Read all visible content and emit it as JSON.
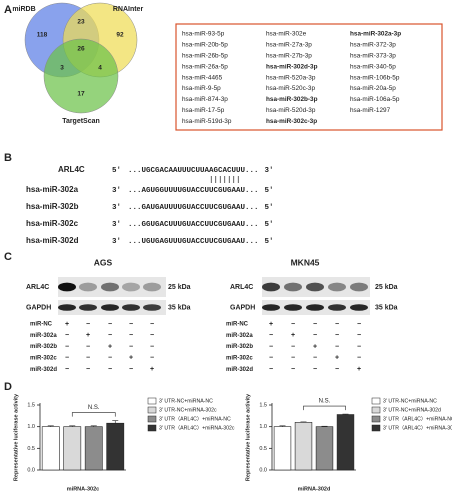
{
  "panel_labels": [
    "A",
    "B",
    "C",
    "D"
  ],
  "venn": {
    "sets": [
      {
        "name": "miRDB",
        "color": "#5b7ee6"
      },
      {
        "name": "RNAInter",
        "color": "#efdc55"
      },
      {
        "name": "TargetScan",
        "color": "#6cc24a"
      }
    ],
    "counts": [
      118,
      23,
      92,
      26,
      3,
      4,
      17
    ]
  },
  "mirna_list": {
    "border_color": "#d9532c",
    "highlight_color": "#e0301e",
    "columns": [
      [
        {
          "name": "hsa-miR-93-5p"
        },
        {
          "name": "hsa-miR-20b-5p"
        },
        {
          "name": "hsa-miR-26b-5p"
        },
        {
          "name": "hsa-miR-26a-5p"
        },
        {
          "name": "hsa-miR-4465"
        },
        {
          "name": "hsa-miR-9-5p"
        },
        {
          "name": "hsa-miR-874-3p"
        },
        {
          "name": "hsa-miR-17-5p"
        },
        {
          "name": "hsa-miR-519d-3p"
        }
      ],
      [
        {
          "name": "hsa-miR-302e"
        },
        {
          "name": "hsa-miR-27a-3p"
        },
        {
          "name": "hsa-miR-27b-3p"
        },
        {
          "name": "hsa-miR-302d-3p",
          "highlight": true
        },
        {
          "name": "hsa-miR-520a-3p"
        },
        {
          "name": "hsa-miR-520c-3p"
        },
        {
          "name": "hsa-miR-302b-3p",
          "highlight": true
        },
        {
          "name": "hsa-miR-520d-3p"
        },
        {
          "name": "hsa-miR-302c-3p",
          "highlight": true
        }
      ],
      [
        {
          "name": "hsa-miR-302a-3p",
          "highlight": true
        },
        {
          "name": "hsa-miR-372-3p"
        },
        {
          "name": "hsa-miR-373-3p"
        },
        {
          "name": "hsa-miR-340-5p"
        },
        {
          "name": "hsa-miR-106b-5p"
        },
        {
          "name": "hsa-miR-20a-5p"
        },
        {
          "name": "hsa-miR-106a-5p"
        },
        {
          "name": "hsa-miR-1297"
        }
      ]
    ]
  },
  "binding": {
    "highlight_color": "#e0301e",
    "target": {
      "name": "ARL4C",
      "prefix": "5'",
      "seq": [
        "...UGCGACAAUUUCUUA",
        "AGCACUU",
        "U..."
      ],
      "suffix": "3'"
    },
    "mirnas": [
      {
        "name": "hsa-miR-302a",
        "prefix": "3'",
        "seq": [
          "...AGUGGUUUUGUACCU",
          "UCGUGAA",
          "U..."
        ],
        "suffix": "5'"
      },
      {
        "name": "hsa-miR-302b",
        "prefix": "3'",
        "seq": [
          "...GAUGAUUUUGUACCU",
          "UCGUGAA",
          "U..."
        ],
        "suffix": "5'"
      },
      {
        "name": "hsa-miR-302c",
        "prefix": "3'",
        "seq": [
          "...GGUGACUUUGUACCU",
          "UCGUGAA",
          "U..."
        ],
        "suffix": "5'"
      },
      {
        "name": "hsa-miR-302d",
        "prefix": "3'",
        "seq": [
          "...UGUGAGUUUGUACCU",
          "UCGUGAA",
          "U..."
        ],
        "suffix": "5'"
      }
    ]
  },
  "blots": [
    {
      "cell_line": "AGS",
      "proteins": [
        {
          "name": "ARL4C",
          "size": "25 kDa"
        },
        {
          "name": "GAPDH",
          "size": "35 kDa"
        }
      ],
      "lanes": [
        {
          "label": "miR-NC",
          "signs": [
            "+",
            "−",
            "−",
            "−",
            "−"
          ]
        },
        {
          "label": "miR-302a",
          "signs": [
            "−",
            "+",
            "−",
            "−",
            "−"
          ]
        },
        {
          "label": "miR-302b",
          "signs": [
            "−",
            "−",
            "+",
            "−",
            "−"
          ]
        },
        {
          "label": "miR-302c",
          "signs": [
            "−",
            "−",
            "−",
            "+",
            "−"
          ]
        },
        {
          "label": "miR-302d",
          "signs": [
            "−",
            "−",
            "−",
            "−",
            "+"
          ]
        }
      ]
    },
    {
      "cell_line": "MKN45",
      "proteins": [
        {
          "name": "ARL4C",
          "size": "25 kDa"
        },
        {
          "name": "GAPDH",
          "size": "35 kDa"
        }
      ],
      "lanes": [
        {
          "label": "miR-NC",
          "signs": [
            "+",
            "−",
            "−",
            "−",
            "−"
          ]
        },
        {
          "label": "miR-302a",
          "signs": [
            "−",
            "+",
            "−",
            "−",
            "−"
          ]
        },
        {
          "label": "miR-302b",
          "signs": [
            "−",
            "−",
            "+",
            "−",
            "−"
          ]
        },
        {
          "label": "miR-302c",
          "signs": [
            "−",
            "−",
            "−",
            "+",
            "−"
          ]
        },
        {
          "label": "miR-302d",
          "signs": [
            "−",
            "−",
            "−",
            "−",
            "+"
          ]
        }
      ]
    }
  ],
  "chart_data": [
    {
      "type": "bar",
      "xlabel": "miRNA-302c",
      "ylabel": "Representative luciferase activity",
      "annotation": "N.S.",
      "ylim": [
        0,
        1.5
      ],
      "yticks": [
        {
          "value": 0,
          "label": "0.0"
        },
        {
          "value": 0.5,
          "label": "0.5"
        },
        {
          "value": 1,
          "label": "1.0"
        },
        {
          "value": 1.5,
          "label": "1.5"
        }
      ],
      "series": [
        {
          "name": "3' UTR-NC+miRNA-NC",
          "color": "#ffffff",
          "values": [
            1.0
          ],
          "errors": [
            0.02
          ]
        },
        {
          "name": "3' UTR-NC+miRNA-302c",
          "color": "#d9d9d9",
          "values": [
            1.0
          ],
          "errors": [
            0.02
          ]
        },
        {
          "name": "3' UTR（ARL4C）+miRNA-NC",
          "color": "#8c8c8c",
          "values": [
            1.0
          ],
          "errors": [
            0.02
          ]
        },
        {
          "name": "3' UTR（ARL4C）+miRNA-302c",
          "color": "#333333",
          "values": [
            1.08
          ],
          "errors": [
            0.06
          ]
        }
      ]
    },
    {
      "type": "bar",
      "xlabel": "miRNA-302d",
      "ylabel": "Representative luciferase activity",
      "annotation": "N.S.",
      "ylim": [
        0,
        1.5
      ],
      "yticks": [
        {
          "value": 0,
          "label": "0.0"
        },
        {
          "value": 0.5,
          "label": "0.5"
        },
        {
          "value": 1,
          "label": "1.0"
        },
        {
          "value": 1.5,
          "label": "1.5"
        }
      ],
      "series": [
        {
          "name": "3' UTR-NC+miRNA-NC",
          "color": "#ffffff",
          "values": [
            1.0
          ],
          "errors": [
            0.02
          ]
        },
        {
          "name": "3' UTR-NC+miRNA-302d",
          "color": "#d9d9d9",
          "values": [
            1.1
          ],
          "errors": [
            0.01
          ]
        },
        {
          "name": "3' UTR（ARL4C）+miRNA-NC",
          "color": "#8c8c8c",
          "values": [
            1.0
          ],
          "errors": [
            0.01
          ]
        },
        {
          "name": "3' UTR（ARL4C）+miRNA-302d",
          "color": "#333333",
          "values": [
            1.28
          ],
          "errors": [
            0.01
          ]
        }
      ]
    }
  ]
}
